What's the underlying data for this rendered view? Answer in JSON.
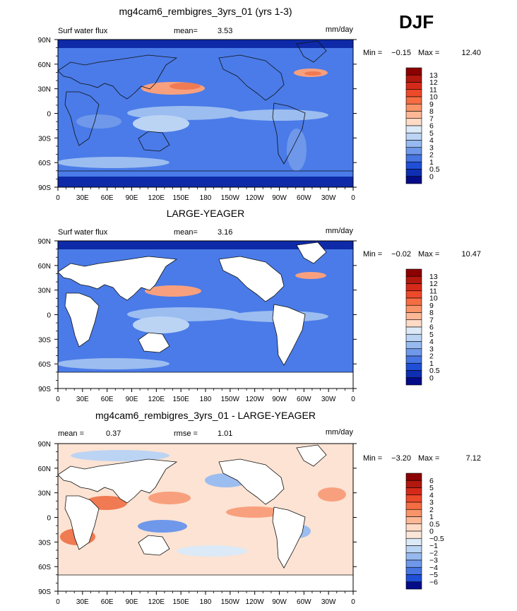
{
  "figure": {
    "season_label": "DJF",
    "units": "mm/day"
  },
  "chart_data": [
    {
      "type": "heatmap",
      "title": "mg4cam6_rembigres_3yrs_01 (yrs 1-3)",
      "variable": "Surf water flux",
      "stat1_label": "mean=",
      "stat1_value": "3.53",
      "stat2_label": "",
      "stat2_value": "",
      "units": "mm/day",
      "min_label": "Min =",
      "min": -0.15,
      "max_label": "Max =",
      "max": 12.4,
      "x_ticks": [
        "0",
        "30E",
        "60E",
        "90E",
        "120E",
        "150E",
        "180",
        "150W",
        "120W",
        "90W",
        "60W",
        "30W",
        "0"
      ],
      "y_ticks": [
        "90N",
        "60N",
        "30N",
        "0",
        "30S",
        "60S",
        "90S"
      ],
      "land_masked": false,
      "colorbar_levels": [
        "13",
        "12",
        "11",
        "10",
        "9",
        "8",
        "7",
        "6",
        "5",
        "4",
        "3",
        "2",
        "1",
        "0.5",
        "0"
      ],
      "colorbar_colors": [
        "#8b0000",
        "#b2180e",
        "#d52a19",
        "#ec4a2a",
        "#f46d43",
        "#f89468",
        "#fbb796",
        "#fddbc7",
        "#dce9f7",
        "#bcd4f4",
        "#96b9ef",
        "#6f98ea",
        "#4775e2",
        "#1f4fd6",
        "#0f2fb2",
        "#050c87"
      ],
      "field_description_colors": {
        "background": "#4a7be8",
        "high": "#f07a52",
        "low": "#0e2aa8"
      }
    },
    {
      "type": "heatmap",
      "title": "LARGE-YEAGER",
      "variable": "Surf water flux",
      "stat1_label": "mean=",
      "stat1_value": "3.16",
      "stat2_label": "",
      "stat2_value": "",
      "units": "mm/day",
      "min_label": "Min =",
      "min": -0.02,
      "max_label": "Max =",
      "max": 10.47,
      "x_ticks": [
        "0",
        "30E",
        "60E",
        "90E",
        "120E",
        "150E",
        "180",
        "150W",
        "120W",
        "90W",
        "60W",
        "30W",
        "0"
      ],
      "y_ticks": [
        "90N",
        "60N",
        "30N",
        "0",
        "30S",
        "60S",
        "90S"
      ],
      "land_masked": true,
      "colorbar_levels": [
        "13",
        "12",
        "11",
        "10",
        "9",
        "8",
        "7",
        "6",
        "5",
        "4",
        "3",
        "2",
        "1",
        "0.5",
        "0"
      ],
      "colorbar_colors": [
        "#8b0000",
        "#b2180e",
        "#d52a19",
        "#ec4a2a",
        "#f46d43",
        "#f89468",
        "#fbb796",
        "#fddbc7",
        "#dce9f7",
        "#bcd4f4",
        "#96b9ef",
        "#6f98ea",
        "#4775e2",
        "#1f4fd6",
        "#0f2fb2",
        "#050c87"
      ],
      "field_description_colors": {
        "background": "#4a7be8",
        "high": "#f07a52",
        "low": "#0e2aa8"
      }
    },
    {
      "type": "heatmap",
      "title": "mg4cam6_rembigres_3yrs_01 - LARGE-YEAGER",
      "variable": "",
      "stat1_label": "mean =",
      "stat1_value": "0.37",
      "stat2_label": "rmse =",
      "stat2_value": "1.01",
      "units": "mm/day",
      "min_label": "Min =",
      "min": -3.2,
      "max_label": "Max =",
      "max": 7.12,
      "x_ticks": [
        "0",
        "30E",
        "60E",
        "90E",
        "120E",
        "150E",
        "180",
        "150W",
        "120W",
        "90W",
        "60W",
        "30W",
        "0"
      ],
      "y_ticks": [
        "90N",
        "60N",
        "30N",
        "0",
        "30S",
        "60S",
        "90S"
      ],
      "land_masked": true,
      "colorbar_levels": [
        "6",
        "5",
        "4",
        "3",
        "2",
        "1",
        "0.5",
        "0",
        "−0.5",
        "−1",
        "−2",
        "−3",
        "−4",
        "−5",
        "−6"
      ],
      "colorbar_colors": [
        "#8b0000",
        "#b2180e",
        "#d52a19",
        "#ec4a2a",
        "#f46d43",
        "#f89468",
        "#fbb796",
        "#fddbc7",
        "#fbe6da",
        "#dce9f7",
        "#bcd4f4",
        "#96b9ef",
        "#6f98ea",
        "#4775e2",
        "#1f4fd6",
        "#050c87"
      ],
      "field_description_colors": {
        "background": "#fce3d3",
        "high": "#e8542e",
        "low": "#4f7fe6"
      }
    }
  ]
}
